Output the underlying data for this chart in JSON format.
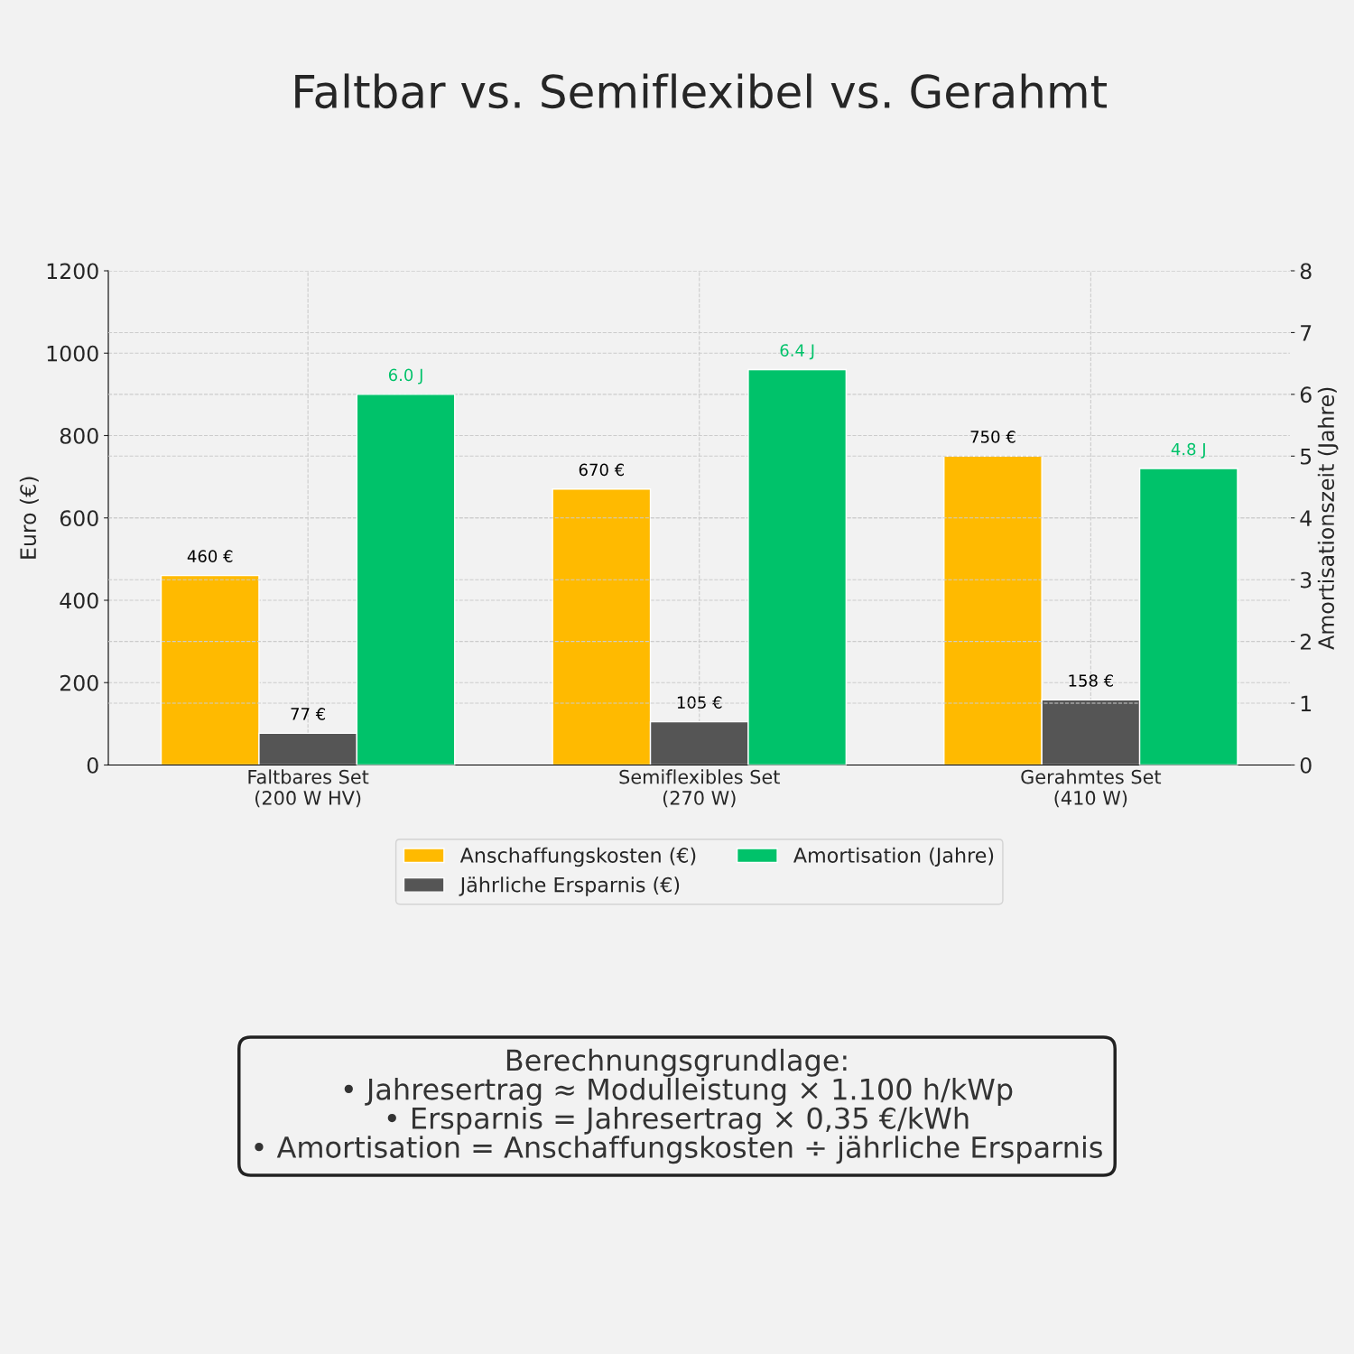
{
  "chart_data": {
    "type": "bar",
    "title": "Faltbar vs. Semiflexibel vs. Gerahmt",
    "categories": [
      "Faltbares Set\n(200 W HV)",
      "Semiflexibles Set\n(270 W)",
      "Gerahmtes Set\n(410 W)"
    ],
    "series": [
      {
        "name": "Anschaffungskosten (€)",
        "color": "#ffba00",
        "values": [
          460,
          670,
          750
        ],
        "value_labels": [
          "460 €",
          "670 €",
          "750 €"
        ]
      },
      {
        "name": "Jährliche Ersparnis (€)",
        "color": "#555555",
        "values": [
          77,
          105,
          158
        ],
        "value_labels": [
          "77 €",
          "105 €",
          "158 €"
        ]
      },
      {
        "name": "Amortisation (Jahre)",
        "color": "#00c26a",
        "values": [
          6.0,
          6.4,
          4.8
        ],
        "axis": "y2",
        "value_labels": [
          "6.0 J",
          "6.4 J",
          "4.8 J"
        ]
      }
    ],
    "ylabel": "Euro (€)",
    "y2label": "Amortisationszeit (Jahre)",
    "ylim": [
      0,
      1200
    ],
    "yticks": [
      0,
      200,
      400,
      600,
      800,
      1000,
      1200
    ],
    "y2lim": [
      0,
      8
    ],
    "y2ticks": [
      0,
      1,
      2,
      3,
      4,
      5,
      6,
      7,
      8
    ],
    "grid": true,
    "legend": "bottom",
    "annotations": [
      "Berechnungsgrundlage:\n• Jahresertrag ≈ Modulleistung × 1.100 h/kWp\n• Ersparnis = Jahresertrag × 0,35 €/kWh\n• Amortisation = Anschaffungskosten ÷ jährliche Ersparnis"
    ]
  }
}
